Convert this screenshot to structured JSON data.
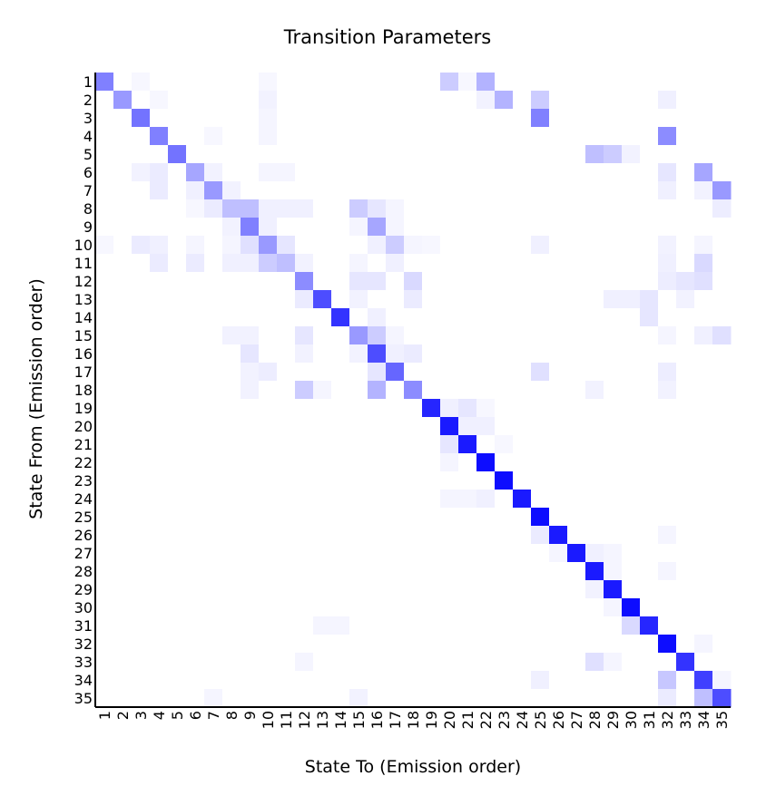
{
  "chart_data": {
    "type": "heatmap",
    "title": "Transition Parameters",
    "xlabel": "State To (Emission order)",
    "ylabel": "State From (Emission order)",
    "color": "#0000ff",
    "x_categories": [
      "1",
      "2",
      "3",
      "4",
      "5",
      "6",
      "7",
      "8",
      "9",
      "10",
      "11",
      "12",
      "13",
      "14",
      "15",
      "16",
      "17",
      "18",
      "19",
      "20",
      "21",
      "22",
      "23",
      "24",
      "25",
      "26",
      "27",
      "28",
      "29",
      "30",
      "31",
      "32",
      "33",
      "34",
      "35"
    ],
    "y_categories": [
      "1",
      "2",
      "3",
      "4",
      "5",
      "6",
      "7",
      "8",
      "9",
      "10",
      "11",
      "12",
      "13",
      "14",
      "15",
      "16",
      "17",
      "18",
      "19",
      "20",
      "21",
      "22",
      "23",
      "24",
      "25",
      "26",
      "27",
      "28",
      "29",
      "30",
      "31",
      "32",
      "33",
      "34",
      "35"
    ],
    "values": [
      [
        0.5,
        0,
        0.03,
        0,
        0,
        0,
        0,
        0,
        0,
        0.03,
        0,
        0,
        0,
        0,
        0,
        0,
        0,
        0,
        0,
        0.2,
        0.03,
        0.3,
        0,
        0,
        0,
        0,
        0,
        0,
        0,
        0,
        0,
        0,
        0,
        0,
        0
      ],
      [
        0,
        0.4,
        0,
        0.03,
        0,
        0,
        0,
        0,
        0,
        0.05,
        0,
        0,
        0,
        0,
        0,
        0,
        0,
        0,
        0,
        0,
        0,
        0.05,
        0.3,
        0,
        0.2,
        0,
        0,
        0,
        0,
        0,
        0,
        0.06,
        0,
        0,
        0
      ],
      [
        0,
        0,
        0.55,
        0,
        0,
        0,
        0,
        0,
        0,
        0.04,
        0,
        0,
        0,
        0,
        0,
        0,
        0,
        0,
        0,
        0,
        0,
        0,
        0,
        0,
        0.5,
        0,
        0,
        0,
        0,
        0,
        0,
        0,
        0,
        0,
        0
      ],
      [
        0,
        0,
        0,
        0.5,
        0,
        0,
        0.03,
        0,
        0,
        0.04,
        0,
        0,
        0,
        0,
        0,
        0,
        0,
        0,
        0,
        0,
        0,
        0,
        0,
        0,
        0,
        0,
        0,
        0,
        0,
        0,
        0,
        0.45,
        0,
        0,
        0
      ],
      [
        0,
        0,
        0,
        0,
        0.55,
        0,
        0,
        0,
        0,
        0,
        0,
        0,
        0,
        0,
        0,
        0,
        0,
        0,
        0,
        0,
        0,
        0,
        0,
        0,
        0,
        0,
        0,
        0.25,
        0.2,
        0.05,
        0,
        0,
        0,
        0,
        0
      ],
      [
        0,
        0,
        0.05,
        0.08,
        0,
        0.35,
        0.05,
        0,
        0,
        0.04,
        0.04,
        0,
        0,
        0,
        0,
        0,
        0,
        0,
        0,
        0,
        0,
        0,
        0,
        0,
        0,
        0,
        0,
        0,
        0,
        0,
        0,
        0.1,
        0,
        0.35,
        0
      ],
      [
        0,
        0,
        0,
        0.08,
        0,
        0.06,
        0.4,
        0.05,
        0,
        0,
        0,
        0,
        0,
        0,
        0,
        0,
        0,
        0,
        0,
        0,
        0,
        0,
        0,
        0,
        0,
        0,
        0,
        0,
        0,
        0,
        0,
        0.06,
        0,
        0.05,
        0.4
      ],
      [
        0,
        0,
        0,
        0,
        0,
        0.03,
        0.08,
        0.25,
        0.25,
        0.06,
        0.06,
        0.06,
        0,
        0,
        0.2,
        0.1,
        0.04,
        0,
        0,
        0,
        0,
        0,
        0,
        0,
        0,
        0,
        0,
        0,
        0,
        0,
        0,
        0,
        0,
        0,
        0.07
      ],
      [
        0,
        0,
        0,
        0,
        0,
        0,
        0,
        0.05,
        0.5,
        0.06,
        0,
        0,
        0,
        0,
        0.04,
        0.35,
        0.04,
        0,
        0,
        0,
        0,
        0,
        0,
        0,
        0,
        0,
        0,
        0,
        0,
        0,
        0,
        0,
        0,
        0,
        0
      ],
      [
        0.03,
        0,
        0.08,
        0.06,
        0,
        0.04,
        0,
        0.04,
        0.12,
        0.4,
        0.1,
        0,
        0,
        0,
        0,
        0.06,
        0.2,
        0.04,
        0.03,
        0,
        0,
        0,
        0,
        0,
        0.06,
        0,
        0,
        0,
        0,
        0,
        0,
        0.05,
        0,
        0.04,
        0
      ],
      [
        0,
        0,
        0,
        0.08,
        0,
        0.08,
        0,
        0.06,
        0.06,
        0.2,
        0.25,
        0.05,
        0,
        0,
        0.04,
        0,
        0.06,
        0,
        0,
        0,
        0,
        0,
        0,
        0,
        0,
        0,
        0,
        0,
        0,
        0,
        0,
        0.06,
        0,
        0.15,
        0
      ],
      [
        0,
        0,
        0,
        0,
        0,
        0,
        0,
        0,
        0,
        0,
        0,
        0.45,
        0,
        0,
        0.1,
        0.1,
        0,
        0.15,
        0,
        0,
        0,
        0,
        0,
        0,
        0,
        0,
        0,
        0,
        0,
        0,
        0,
        0.07,
        0.1,
        0.12,
        0
      ],
      [
        0,
        0,
        0,
        0,
        0,
        0,
        0,
        0,
        0,
        0,
        0,
        0.08,
        0.7,
        0,
        0.05,
        0,
        0,
        0.08,
        0,
        0,
        0,
        0,
        0,
        0,
        0,
        0,
        0,
        0,
        0.06,
        0.06,
        0.1,
        0,
        0.05,
        0,
        0
      ],
      [
        0,
        0,
        0,
        0,
        0,
        0,
        0,
        0,
        0,
        0,
        0,
        0,
        0,
        0.8,
        0,
        0.06,
        0,
        0,
        0,
        0,
        0,
        0,
        0,
        0,
        0,
        0,
        0,
        0,
        0,
        0,
        0.1,
        0,
        0,
        0,
        0
      ],
      [
        0,
        0,
        0,
        0,
        0,
        0,
        0,
        0.05,
        0.05,
        0,
        0,
        0.1,
        0,
        0,
        0.4,
        0.2,
        0.04,
        0,
        0,
        0,
        0,
        0,
        0,
        0,
        0,
        0,
        0,
        0,
        0,
        0,
        0,
        0.04,
        0,
        0.06,
        0.12
      ],
      [
        0,
        0,
        0,
        0,
        0,
        0,
        0,
        0,
        0.1,
        0,
        0,
        0.05,
        0,
        0,
        0.05,
        0.7,
        0.06,
        0.08,
        0,
        0,
        0,
        0,
        0,
        0,
        0,
        0,
        0,
        0,
        0,
        0,
        0,
        0,
        0,
        0,
        0
      ],
      [
        0,
        0,
        0,
        0,
        0,
        0,
        0,
        0,
        0.05,
        0.07,
        0,
        0,
        0,
        0,
        0,
        0.1,
        0.6,
        0,
        0,
        0,
        0,
        0,
        0,
        0,
        0.12,
        0,
        0,
        0,
        0,
        0,
        0,
        0.07,
        0,
        0,
        0
      ],
      [
        0,
        0,
        0,
        0,
        0,
        0,
        0,
        0,
        0.05,
        0,
        0,
        0.2,
        0.04,
        0,
        0,
        0.3,
        0,
        0.45,
        0,
        0,
        0,
        0,
        0,
        0,
        0,
        0,
        0,
        0.05,
        0,
        0,
        0,
        0.05,
        0,
        0,
        0
      ],
      [
        0,
        0,
        0,
        0,
        0,
        0,
        0,
        0,
        0,
        0,
        0,
        0,
        0,
        0,
        0,
        0,
        0,
        0,
        0.85,
        0.06,
        0.1,
        0.03,
        0,
        0,
        0,
        0,
        0,
        0,
        0,
        0,
        0,
        0,
        0,
        0,
        0
      ],
      [
        0,
        0,
        0,
        0,
        0,
        0,
        0,
        0,
        0,
        0,
        0,
        0,
        0,
        0,
        0,
        0,
        0,
        0,
        0,
        0.9,
        0.06,
        0.06,
        0,
        0,
        0,
        0,
        0,
        0,
        0,
        0,
        0,
        0,
        0,
        0,
        0
      ],
      [
        0,
        0,
        0,
        0,
        0,
        0,
        0,
        0,
        0,
        0,
        0,
        0,
        0,
        0,
        0,
        0,
        0,
        0,
        0,
        0.1,
        0.9,
        0,
        0.03,
        0,
        0,
        0,
        0,
        0,
        0,
        0,
        0,
        0,
        0,
        0,
        0
      ],
      [
        0,
        0,
        0,
        0,
        0,
        0,
        0,
        0,
        0,
        0,
        0,
        0,
        0,
        0,
        0,
        0,
        0,
        0,
        0,
        0.04,
        0,
        0.95,
        0,
        0,
        0,
        0,
        0,
        0,
        0,
        0,
        0,
        0,
        0,
        0,
        0
      ],
      [
        0,
        0,
        0,
        0,
        0,
        0,
        0,
        0,
        0,
        0,
        0,
        0,
        0,
        0,
        0,
        0,
        0,
        0,
        0,
        0,
        0,
        0,
        0.95,
        0,
        0,
        0,
        0,
        0,
        0,
        0,
        0,
        0,
        0,
        0,
        0
      ],
      [
        0,
        0,
        0,
        0,
        0,
        0,
        0,
        0,
        0,
        0,
        0,
        0,
        0,
        0,
        0,
        0,
        0,
        0,
        0,
        0.04,
        0.04,
        0.06,
        0,
        0.9,
        0,
        0,
        0,
        0,
        0,
        0,
        0,
        0,
        0,
        0,
        0
      ],
      [
        0,
        0,
        0,
        0,
        0,
        0,
        0,
        0,
        0,
        0,
        0,
        0,
        0,
        0,
        0,
        0,
        0,
        0,
        0,
        0,
        0,
        0,
        0,
        0,
        0.95,
        0,
        0,
        0,
        0,
        0,
        0,
        0,
        0,
        0,
        0
      ],
      [
        0,
        0,
        0,
        0,
        0,
        0,
        0,
        0,
        0,
        0,
        0,
        0,
        0,
        0,
        0,
        0,
        0,
        0,
        0,
        0,
        0,
        0,
        0,
        0,
        0.08,
        0.9,
        0,
        0,
        0,
        0,
        0,
        0.04,
        0,
        0,
        0
      ],
      [
        0,
        0,
        0,
        0,
        0,
        0,
        0,
        0,
        0,
        0,
        0,
        0,
        0,
        0,
        0,
        0,
        0,
        0,
        0,
        0,
        0,
        0,
        0,
        0,
        0,
        0.04,
        0.9,
        0.06,
        0.04,
        0,
        0,
        0,
        0,
        0,
        0
      ],
      [
        0,
        0,
        0,
        0,
        0,
        0,
        0,
        0,
        0,
        0,
        0,
        0,
        0,
        0,
        0,
        0,
        0,
        0,
        0,
        0,
        0,
        0,
        0,
        0,
        0,
        0,
        0,
        0.9,
        0.04,
        0,
        0,
        0.04,
        0,
        0,
        0
      ],
      [
        0,
        0,
        0,
        0,
        0,
        0,
        0,
        0,
        0,
        0,
        0,
        0,
        0,
        0,
        0,
        0,
        0,
        0,
        0,
        0,
        0,
        0,
        0,
        0,
        0,
        0,
        0,
        0.05,
        0.9,
        0,
        0,
        0,
        0,
        0,
        0
      ],
      [
        0,
        0,
        0,
        0,
        0,
        0,
        0,
        0,
        0,
        0,
        0,
        0,
        0,
        0,
        0,
        0,
        0,
        0,
        0,
        0,
        0,
        0,
        0,
        0,
        0,
        0,
        0,
        0,
        0.04,
        0.95,
        0,
        0,
        0,
        0,
        0
      ],
      [
        0,
        0,
        0,
        0,
        0,
        0,
        0,
        0,
        0,
        0,
        0,
        0,
        0.04,
        0.04,
        0,
        0,
        0,
        0,
        0,
        0,
        0,
        0,
        0,
        0,
        0,
        0,
        0,
        0,
        0,
        0.15,
        0.85,
        0,
        0,
        0,
        0
      ],
      [
        0,
        0,
        0,
        0,
        0,
        0,
        0,
        0,
        0,
        0,
        0,
        0,
        0,
        0,
        0,
        0,
        0,
        0,
        0,
        0,
        0,
        0,
        0,
        0,
        0,
        0,
        0,
        0,
        0,
        0,
        0,
        0.95,
        0,
        0.04,
        0
      ],
      [
        0,
        0,
        0,
        0,
        0,
        0,
        0,
        0,
        0,
        0,
        0,
        0.04,
        0,
        0,
        0,
        0,
        0,
        0,
        0,
        0,
        0,
        0,
        0,
        0,
        0,
        0,
        0,
        0.12,
        0.04,
        0,
        0,
        0,
        0.8,
        0,
        0
      ],
      [
        0,
        0,
        0,
        0,
        0,
        0,
        0,
        0,
        0,
        0,
        0,
        0,
        0,
        0,
        0,
        0,
        0,
        0,
        0,
        0,
        0,
        0,
        0,
        0,
        0.06,
        0,
        0,
        0,
        0,
        0,
        0,
        0.22,
        0,
        0.75,
        0.04
      ],
      [
        0,
        0,
        0,
        0,
        0,
        0,
        0.04,
        0,
        0,
        0,
        0,
        0,
        0,
        0,
        0.05,
        0,
        0,
        0,
        0,
        0,
        0,
        0,
        0,
        0,
        0,
        0,
        0,
        0,
        0,
        0,
        0,
        0.08,
        0,
        0.25,
        0.7
      ]
    ]
  }
}
